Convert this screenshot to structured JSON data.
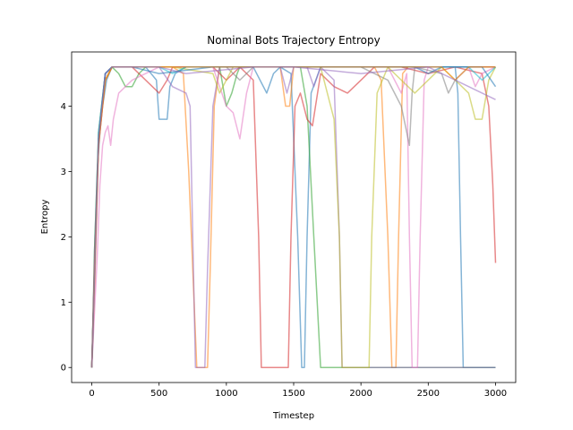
{
  "chart_data": {
    "type": "line",
    "title": "Nominal Bots Trajectory Entropy",
    "xlabel": "Timestep",
    "ylabel": "Entropy",
    "xlim": [
      -150,
      3150
    ],
    "ylim": [
      -0.23,
      4.83
    ],
    "xticks": [
      0,
      500,
      1000,
      1500,
      2000,
      2500,
      3000
    ],
    "yticks": [
      0,
      1,
      2,
      3,
      4
    ],
    "grid": false,
    "legend": "none",
    "series": [
      {
        "color": "#1f77b4",
        "values": [
          [
            0,
            0
          ],
          [
            10,
            0.5
          ],
          [
            20,
            1.8
          ],
          [
            40,
            3.0
          ],
          [
            60,
            3.6
          ],
          [
            80,
            4.0
          ],
          [
            110,
            4.4
          ],
          [
            150,
            4.6
          ],
          [
            250,
            4.6
          ],
          [
            400,
            4.6
          ],
          [
            480,
            4.4
          ],
          [
            500,
            3.8
          ],
          [
            560,
            3.8
          ],
          [
            580,
            4.3
          ],
          [
            620,
            4.5
          ],
          [
            700,
            4.6
          ],
          [
            1000,
            4.6
          ],
          [
            1400,
            4.6
          ],
          [
            1480,
            4.5
          ],
          [
            1530,
            2.0
          ],
          [
            1560,
            0
          ],
          [
            1580,
            0
          ],
          [
            1600,
            2.0
          ],
          [
            1630,
            4.2
          ],
          [
            1700,
            4.6
          ],
          [
            2000,
            4.6
          ],
          [
            2700,
            4.6
          ],
          [
            2720,
            4.2
          ],
          [
            2740,
            2.0
          ],
          [
            2760,
            0
          ],
          [
            3000,
            0
          ]
        ]
      },
      {
        "color": "#ff7f0e",
        "values": [
          [
            0,
            0
          ],
          [
            20,
            1.5
          ],
          [
            50,
            3.5
          ],
          [
            100,
            4.4
          ],
          [
            150,
            4.6
          ],
          [
            400,
            4.6
          ],
          [
            600,
            4.6
          ],
          [
            680,
            4.5
          ],
          [
            720,
            3.0
          ],
          [
            760,
            1.0
          ],
          [
            780,
            0
          ],
          [
            860,
            0
          ],
          [
            880,
            1.5
          ],
          [
            910,
            4.0
          ],
          [
            950,
            4.6
          ],
          [
            1200,
            4.6
          ],
          [
            1400,
            4.6
          ],
          [
            1440,
            4.0
          ],
          [
            1470,
            4.0
          ],
          [
            1500,
            4.6
          ],
          [
            1700,
            4.6
          ],
          [
            2000,
            4.6
          ],
          [
            2100,
            4.6
          ],
          [
            2150,
            4.4
          ],
          [
            2200,
            2.0
          ],
          [
            2230,
            0
          ],
          [
            2260,
            0
          ],
          [
            2280,
            2.0
          ],
          [
            2310,
            4.5
          ],
          [
            2350,
            4.6
          ],
          [
            3000,
            4.6
          ]
        ]
      },
      {
        "color": "#2ca02c",
        "values": [
          [
            0,
            0
          ],
          [
            20,
            1.8
          ],
          [
            50,
            3.6
          ],
          [
            100,
            4.5
          ],
          [
            150,
            4.6
          ],
          [
            200,
            4.5
          ],
          [
            250,
            4.3
          ],
          [
            300,
            4.3
          ],
          [
            350,
            4.5
          ],
          [
            400,
            4.6
          ],
          [
            800,
            4.6
          ],
          [
            950,
            4.6
          ],
          [
            1000,
            4.0
          ],
          [
            1040,
            4.2
          ],
          [
            1080,
            4.5
          ],
          [
            1100,
            4.6
          ],
          [
            1550,
            4.6
          ],
          [
            1600,
            4.0
          ],
          [
            1650,
            2.0
          ],
          [
            1700,
            0
          ],
          [
            3000,
            0
          ]
        ]
      },
      {
        "color": "#d62728",
        "values": [
          [
            0,
            0
          ],
          [
            20,
            1.2
          ],
          [
            50,
            3.4
          ],
          [
            100,
            4.4
          ],
          [
            150,
            4.6
          ],
          [
            300,
            4.6
          ],
          [
            400,
            4.4
          ],
          [
            500,
            4.2
          ],
          [
            560,
            4.4
          ],
          [
            600,
            4.6
          ],
          [
            900,
            4.6
          ],
          [
            1000,
            4.4
          ],
          [
            1100,
            4.6
          ],
          [
            1200,
            4.4
          ],
          [
            1240,
            2.0
          ],
          [
            1260,
            0
          ],
          [
            1460,
            0
          ],
          [
            1480,
            2.0
          ],
          [
            1510,
            4.0
          ],
          [
            1550,
            4.2
          ],
          [
            1600,
            3.8
          ],
          [
            1640,
            3.7
          ],
          [
            1700,
            4.5
          ],
          [
            1800,
            4.3
          ],
          [
            1900,
            4.2
          ],
          [
            2000,
            4.4
          ],
          [
            2100,
            4.6
          ],
          [
            2300,
            4.6
          ],
          [
            2500,
            4.5
          ],
          [
            2700,
            4.6
          ],
          [
            2900,
            4.5
          ],
          [
            2950,
            4.0
          ],
          [
            2980,
            2.8
          ],
          [
            3000,
            1.6
          ]
        ]
      },
      {
        "color": "#9467bd",
        "values": [
          [
            0,
            0
          ],
          [
            20,
            1.6
          ],
          [
            50,
            3.5
          ],
          [
            100,
            4.5
          ],
          [
            150,
            4.6
          ],
          [
            400,
            4.6
          ],
          [
            500,
            4.6
          ],
          [
            600,
            4.3
          ],
          [
            700,
            4.2
          ],
          [
            730,
            4.0
          ],
          [
            760,
            1.0
          ],
          [
            770,
            0
          ],
          [
            840,
            0
          ],
          [
            860,
            1.5
          ],
          [
            900,
            4.0
          ],
          [
            950,
            4.6
          ],
          [
            1300,
            4.6
          ],
          [
            1400,
            4.6
          ],
          [
            1450,
            4.2
          ],
          [
            1500,
            4.6
          ],
          [
            1600,
            4.6
          ],
          [
            1650,
            4.3
          ],
          [
            1700,
            4.6
          ],
          [
            1800,
            4.4
          ],
          [
            1840,
            2.0
          ],
          [
            1860,
            0
          ],
          [
            3000,
            0
          ]
        ]
      },
      {
        "color": "#8c564b",
        "values": [
          [
            0,
            0
          ],
          [
            20,
            1.5
          ],
          [
            50,
            3.5
          ],
          [
            100,
            4.5
          ],
          [
            150,
            4.6
          ],
          [
            3000,
            4.6
          ]
        ]
      },
      {
        "color": "#e377c2",
        "values": [
          [
            0,
            0
          ],
          [
            40,
            1.7
          ],
          [
            60,
            2.8
          ],
          [
            80,
            3.4
          ],
          [
            100,
            3.6
          ],
          [
            120,
            3.7
          ],
          [
            140,
            3.4
          ],
          [
            160,
            3.8
          ],
          [
            200,
            4.2
          ],
          [
            300,
            4.4
          ],
          [
            400,
            4.5
          ],
          [
            500,
            4.6
          ],
          [
            900,
            4.6
          ],
          [
            950,
            4.3
          ],
          [
            1000,
            4.0
          ],
          [
            1050,
            3.9
          ],
          [
            1100,
            3.5
          ],
          [
            1150,
            4.2
          ],
          [
            1200,
            4.6
          ],
          [
            1500,
            4.6
          ],
          [
            2000,
            4.6
          ],
          [
            2200,
            4.6
          ],
          [
            2250,
            4.4
          ],
          [
            2300,
            4.2
          ],
          [
            2340,
            4.5
          ],
          [
            2360,
            2.0
          ],
          [
            2380,
            0
          ],
          [
            2420,
            0
          ],
          [
            2440,
            2.0
          ],
          [
            2470,
            4.4
          ],
          [
            2500,
            4.6
          ],
          [
            2800,
            4.6
          ],
          [
            2850,
            4.3
          ],
          [
            2900,
            4.5
          ],
          [
            3000,
            4.6
          ]
        ]
      },
      {
        "color": "#7f7f7f",
        "values": [
          [
            0,
            0
          ],
          [
            20,
            1.5
          ],
          [
            50,
            3.6
          ],
          [
            100,
            4.5
          ],
          [
            150,
            4.6
          ],
          [
            900,
            4.6
          ],
          [
            1000,
            4.6
          ],
          [
            1100,
            4.4
          ],
          [
            1200,
            4.6
          ],
          [
            1600,
            4.6
          ],
          [
            2000,
            4.6
          ],
          [
            2200,
            4.4
          ],
          [
            2300,
            4.0
          ],
          [
            2340,
            3.6
          ],
          [
            2360,
            3.4
          ],
          [
            2380,
            4.2
          ],
          [
            2400,
            4.6
          ],
          [
            2600,
            4.5
          ],
          [
            2650,
            4.2
          ],
          [
            2700,
            4.4
          ],
          [
            2800,
            4.6
          ],
          [
            3000,
            4.6
          ]
        ]
      },
      {
        "color": "#bcbd22",
        "values": [
          [
            0,
            0
          ],
          [
            20,
            1.4
          ],
          [
            50,
            3.5
          ],
          [
            100,
            4.4
          ],
          [
            150,
            4.6
          ],
          [
            400,
            4.6
          ],
          [
            600,
            4.6
          ],
          [
            900,
            4.5
          ],
          [
            950,
            4.2
          ],
          [
            1000,
            4.4
          ],
          [
            1050,
            4.6
          ],
          [
            1700,
            4.6
          ],
          [
            1750,
            4.2
          ],
          [
            1800,
            3.8
          ],
          [
            1840,
            2.0
          ],
          [
            1860,
            0
          ],
          [
            2060,
            0
          ],
          [
            2080,
            2.0
          ],
          [
            2120,
            4.2
          ],
          [
            2200,
            4.6
          ],
          [
            2300,
            4.4
          ],
          [
            2400,
            4.2
          ],
          [
            2500,
            4.4
          ],
          [
            2600,
            4.6
          ],
          [
            2800,
            4.2
          ],
          [
            2850,
            3.8
          ],
          [
            2900,
            3.8
          ],
          [
            2950,
            4.4
          ],
          [
            3000,
            4.6
          ]
        ]
      },
      {
        "color": "#17becf",
        "values": [
          [
            0,
            0
          ],
          [
            20,
            1.5
          ],
          [
            50,
            3.6
          ],
          [
            100,
            4.5
          ],
          [
            150,
            4.6
          ],
          [
            500,
            4.6
          ],
          [
            600,
            4.5
          ],
          [
            700,
            4.6
          ],
          [
            1400,
            4.6
          ],
          [
            1600,
            4.6
          ],
          [
            2000,
            4.6
          ],
          [
            2500,
            4.6
          ],
          [
            2800,
            4.6
          ],
          [
            2900,
            4.4
          ],
          [
            3000,
            4.6
          ]
        ]
      },
      {
        "color": "#1f77b4",
        "values": [
          [
            0,
            0
          ],
          [
            20,
            1.6
          ],
          [
            50,
            3.5
          ],
          [
            100,
            4.5
          ],
          [
            150,
            4.6
          ],
          [
            300,
            4.6
          ],
          [
            500,
            4.5
          ],
          [
            900,
            4.6
          ],
          [
            1200,
            4.6
          ],
          [
            1300,
            4.2
          ],
          [
            1350,
            4.5
          ],
          [
            1400,
            4.6
          ],
          [
            2000,
            4.6
          ],
          [
            2400,
            4.6
          ],
          [
            2500,
            4.5
          ],
          [
            2600,
            4.6
          ],
          [
            2900,
            4.6
          ],
          [
            3000,
            4.3
          ]
        ]
      },
      {
        "color": "#ff7f0e",
        "values": [
          [
            0,
            0
          ],
          [
            20,
            1.6
          ],
          [
            50,
            3.4
          ],
          [
            100,
            4.4
          ],
          [
            150,
            4.6
          ],
          [
            800,
            4.6
          ],
          [
            1000,
            4.6
          ],
          [
            1400,
            4.6
          ],
          [
            1500,
            4.6
          ],
          [
            2000,
            4.6
          ],
          [
            2600,
            4.6
          ],
          [
            2700,
            4.4
          ],
          [
            2800,
            4.6
          ],
          [
            3000,
            4.6
          ]
        ]
      },
      {
        "color": "#9467bd",
        "values": [
          [
            0,
            0
          ],
          [
            20,
            1.5
          ],
          [
            50,
            3.5
          ],
          [
            100,
            4.5
          ],
          [
            150,
            4.6
          ],
          [
            500,
            4.6
          ],
          [
            700,
            4.5
          ],
          [
            1200,
            4.6
          ],
          [
            1500,
            4.6
          ],
          [
            2000,
            4.5
          ],
          [
            2500,
            4.6
          ],
          [
            3000,
            4.1
          ]
        ]
      }
    ]
  }
}
